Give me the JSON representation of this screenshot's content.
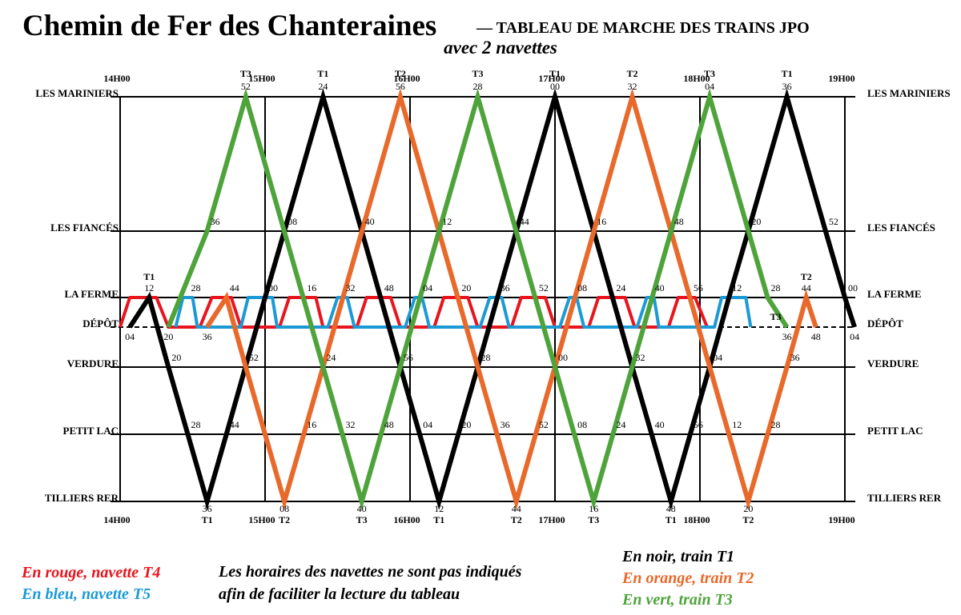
{
  "header": {
    "title": "Chemin de Fer des Chanteraines",
    "subtitle": "— TABLEAU DE MARCHE DES TRAINS JPO",
    "note": "avec 2 navettes"
  },
  "stations": [
    "LES MARINIERS",
    "LES FIANCÉS",
    "LA FERME",
    "DÉPÔT",
    "VERDURE",
    "PETIT LAC",
    "TILLIERS RER"
  ],
  "hours": [
    "14H00",
    "15H00",
    "16H00",
    "17H00",
    "18H00",
    "19H00"
  ],
  "trains": [
    {
      "name": "T1",
      "color": "#000000",
      "stops": [
        {
          "station": 3,
          "label": "04"
        },
        {
          "station": 2,
          "label": "12",
          "tag": "T1"
        },
        {
          "station": 4,
          "label": "20"
        },
        {
          "station": 5,
          "label": "28"
        },
        {
          "station": 6,
          "label": "36",
          "tag": "T1"
        },
        {
          "station": 5,
          "label": "44"
        },
        {
          "station": 2,
          "label": "00"
        },
        {
          "station": 1,
          "label": "08"
        },
        {
          "station": 0,
          "label": "24",
          "tag": "T1"
        },
        {
          "station": 1,
          "label": "40"
        },
        {
          "station": 4,
          "label": "56"
        },
        {
          "station": 5,
          "label": "04"
        },
        {
          "station": 6,
          "label": "12",
          "tag": "T1"
        },
        {
          "station": 5,
          "label": "20"
        },
        {
          "station": 4,
          "label": "28"
        },
        {
          "station": 1,
          "label": "44"
        },
        {
          "station": 0,
          "label": "00",
          "tag": "T1"
        },
        {
          "station": 1,
          "label": "16"
        },
        {
          "station": 4,
          "label": "32"
        },
        {
          "station": 5,
          "label": "40"
        },
        {
          "station": 6,
          "label": "48",
          "tag": "T1"
        },
        {
          "station": 5,
          "label": "56"
        },
        {
          "station": 4,
          "label": "04"
        },
        {
          "station": 2,
          "label": "12"
        },
        {
          "station": 1,
          "label": "20"
        },
        {
          "station": 0,
          "label": "36",
          "tag": "T1"
        },
        {
          "station": 1,
          "label": "52"
        },
        {
          "station": 2,
          "label": "00"
        },
        {
          "station": 3,
          "label": "04"
        }
      ]
    },
    {
      "name": "T2",
      "color": "#e8692a",
      "stops": [
        {
          "station": 3,
          "label": "36"
        },
        {
          "station": 2,
          "label": "44"
        },
        {
          "station": 4,
          "label": "52"
        },
        {
          "station": 6,
          "label": "08",
          "tag": "T2"
        },
        {
          "station": 5,
          "label": "16"
        },
        {
          "station": 4,
          "label": "24"
        },
        {
          "station": 0,
          "label": "56",
          "tag": "T2"
        },
        {
          "station": 5,
          "label": "36"
        },
        {
          "station": 6,
          "label": "44",
          "tag": "T2"
        },
        {
          "station": 5,
          "label": "52"
        },
        {
          "station": 4,
          "label": "00"
        },
        {
          "station": 0,
          "label": "32",
          "tag": "T2"
        },
        {
          "station": 1,
          "label": "48"
        },
        {
          "station": 5,
          "label": "12"
        },
        {
          "station": 6,
          "label": "20",
          "tag": "T2"
        },
        {
          "station": 5,
          "label": "28"
        },
        {
          "station": 4,
          "label": "36"
        },
        {
          "station": 2,
          "label": "44",
          "tag": "T2"
        },
        {
          "station": 3,
          "label": "48"
        }
      ]
    },
    {
      "name": "T3",
      "color": "#4ea33a",
      "stops": [
        {
          "station": 3,
          "label": "20"
        },
        {
          "station": 1,
          "label": "36"
        },
        {
          "station": 0,
          "label": "52",
          "tag": "T3"
        },
        {
          "station": 5,
          "label": "32"
        },
        {
          "station": 6,
          "label": "40",
          "tag": "T3"
        },
        {
          "station": 5,
          "label": "48"
        },
        {
          "station": 1,
          "label": "12"
        },
        {
          "station": 0,
          "label": "28",
          "tag": "T3"
        },
        {
          "station": 5,
          "label": "08"
        },
        {
          "station": 6,
          "label": "16",
          "tag": "T3"
        },
        {
          "station": 5,
          "label": "24"
        },
        {
          "station": 0,
          "label": "04",
          "tag": "T3"
        },
        {
          "station": 2,
          "label": "28"
        },
        {
          "station": 3,
          "label": "36",
          "tag": "T3"
        }
      ]
    }
  ],
  "shuttles": [
    {
      "name": "T4",
      "color": "#e8141e",
      "points": [
        [
          0,
          3
        ],
        [
          4,
          2
        ],
        [
          15,
          2
        ],
        [
          20,
          3
        ],
        [
          33,
          3
        ],
        [
          38,
          2
        ],
        [
          46,
          2
        ],
        [
          50,
          3
        ],
        [
          66,
          3
        ],
        [
          70,
          2
        ],
        [
          81,
          2
        ],
        [
          84,
          3
        ],
        [
          98,
          3
        ],
        [
          102,
          2
        ],
        [
          112,
          2
        ],
        [
          116,
          3
        ],
        [
          130,
          3
        ],
        [
          134,
          2
        ],
        [
          144,
          2
        ],
        [
          148,
          3
        ],
        [
          162,
          3
        ],
        [
          166,
          2
        ],
        [
          176,
          2
        ],
        [
          180,
          3
        ],
        [
          194,
          3
        ],
        [
          198,
          2
        ],
        [
          209,
          2
        ],
        [
          213,
          3
        ],
        [
          227,
          3
        ],
        [
          231,
          2
        ],
        [
          238,
          2
        ],
        [
          243,
          3
        ]
      ]
    },
    {
      "name": "T5",
      "color": "#1b9ad6",
      "points": [
        [
          23,
          3
        ],
        [
          26,
          2
        ],
        [
          30,
          2
        ],
        [
          32,
          3
        ],
        [
          50,
          3
        ],
        [
          53,
          2
        ],
        [
          63,
          2
        ],
        [
          65,
          3
        ],
        [
          86,
          3
        ],
        [
          90,
          2
        ],
        [
          94,
          2
        ],
        [
          97,
          3
        ],
        [
          118,
          3
        ],
        [
          122,
          2
        ],
        [
          125,
          2
        ],
        [
          128,
          3
        ],
        [
          149,
          3
        ],
        [
          153,
          2
        ],
        [
          158,
          2
        ],
        [
          161,
          3
        ],
        [
          182,
          3
        ],
        [
          186,
          2
        ],
        [
          189,
          2
        ],
        [
          192,
          3
        ],
        [
          214,
          3
        ],
        [
          218,
          2
        ],
        [
          221,
          2
        ],
        [
          223,
          3
        ],
        [
          246,
          3
        ],
        [
          249,
          2
        ],
        [
          259,
          2
        ],
        [
          261,
          3
        ]
      ]
    }
  ],
  "shuttle_labels": [
    "28",
    "16",
    "32",
    "48",
    "04",
    "20",
    "36",
    "52",
    "08",
    "24",
    "40",
    "56"
  ],
  "legend": {
    "t4": "En rouge, navette T4",
    "t5": "En bleu, navette T5",
    "note1": "Les horaires des navettes ne sont pas indiqués",
    "note2": "afin de faciliter la lecture du tableau",
    "t1": "En noir, train T1",
    "t2": "En orange, train T2",
    "t3": "En vert, train T3"
  }
}
